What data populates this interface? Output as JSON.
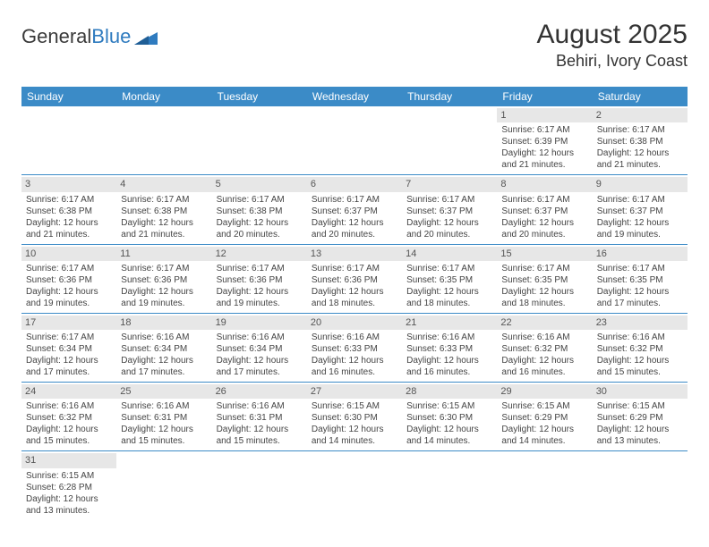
{
  "logo": {
    "part1": "General",
    "part2": "Blue"
  },
  "title": "August 2025",
  "location": "Behiri, Ivory Coast",
  "colors": {
    "header_bg": "#3b8bc7",
    "header_text": "#ffffff",
    "daynum_bg": "#e7e7e7",
    "divider": "#3b8bc7",
    "text": "#444444"
  },
  "day_labels": [
    "Sunday",
    "Monday",
    "Tuesday",
    "Wednesday",
    "Thursday",
    "Friday",
    "Saturday"
  ],
  "weeks": [
    [
      {
        "n": "",
        "sr": "",
        "ss": "",
        "dl": ""
      },
      {
        "n": "",
        "sr": "",
        "ss": "",
        "dl": ""
      },
      {
        "n": "",
        "sr": "",
        "ss": "",
        "dl": ""
      },
      {
        "n": "",
        "sr": "",
        "ss": "",
        "dl": ""
      },
      {
        "n": "",
        "sr": "",
        "ss": "",
        "dl": ""
      },
      {
        "n": "1",
        "sr": "Sunrise: 6:17 AM",
        "ss": "Sunset: 6:39 PM",
        "dl": "Daylight: 12 hours and 21 minutes."
      },
      {
        "n": "2",
        "sr": "Sunrise: 6:17 AM",
        "ss": "Sunset: 6:38 PM",
        "dl": "Daylight: 12 hours and 21 minutes."
      }
    ],
    [
      {
        "n": "3",
        "sr": "Sunrise: 6:17 AM",
        "ss": "Sunset: 6:38 PM",
        "dl": "Daylight: 12 hours and 21 minutes."
      },
      {
        "n": "4",
        "sr": "Sunrise: 6:17 AM",
        "ss": "Sunset: 6:38 PM",
        "dl": "Daylight: 12 hours and 21 minutes."
      },
      {
        "n": "5",
        "sr": "Sunrise: 6:17 AM",
        "ss": "Sunset: 6:38 PM",
        "dl": "Daylight: 12 hours and 20 minutes."
      },
      {
        "n": "6",
        "sr": "Sunrise: 6:17 AM",
        "ss": "Sunset: 6:37 PM",
        "dl": "Daylight: 12 hours and 20 minutes."
      },
      {
        "n": "7",
        "sr": "Sunrise: 6:17 AM",
        "ss": "Sunset: 6:37 PM",
        "dl": "Daylight: 12 hours and 20 minutes."
      },
      {
        "n": "8",
        "sr": "Sunrise: 6:17 AM",
        "ss": "Sunset: 6:37 PM",
        "dl": "Daylight: 12 hours and 20 minutes."
      },
      {
        "n": "9",
        "sr": "Sunrise: 6:17 AM",
        "ss": "Sunset: 6:37 PM",
        "dl": "Daylight: 12 hours and 19 minutes."
      }
    ],
    [
      {
        "n": "10",
        "sr": "Sunrise: 6:17 AM",
        "ss": "Sunset: 6:36 PM",
        "dl": "Daylight: 12 hours and 19 minutes."
      },
      {
        "n": "11",
        "sr": "Sunrise: 6:17 AM",
        "ss": "Sunset: 6:36 PM",
        "dl": "Daylight: 12 hours and 19 minutes."
      },
      {
        "n": "12",
        "sr": "Sunrise: 6:17 AM",
        "ss": "Sunset: 6:36 PM",
        "dl": "Daylight: 12 hours and 19 minutes."
      },
      {
        "n": "13",
        "sr": "Sunrise: 6:17 AM",
        "ss": "Sunset: 6:36 PM",
        "dl": "Daylight: 12 hours and 18 minutes."
      },
      {
        "n": "14",
        "sr": "Sunrise: 6:17 AM",
        "ss": "Sunset: 6:35 PM",
        "dl": "Daylight: 12 hours and 18 minutes."
      },
      {
        "n": "15",
        "sr": "Sunrise: 6:17 AM",
        "ss": "Sunset: 6:35 PM",
        "dl": "Daylight: 12 hours and 18 minutes."
      },
      {
        "n": "16",
        "sr": "Sunrise: 6:17 AM",
        "ss": "Sunset: 6:35 PM",
        "dl": "Daylight: 12 hours and 17 minutes."
      }
    ],
    [
      {
        "n": "17",
        "sr": "Sunrise: 6:17 AM",
        "ss": "Sunset: 6:34 PM",
        "dl": "Daylight: 12 hours and 17 minutes."
      },
      {
        "n": "18",
        "sr": "Sunrise: 6:16 AM",
        "ss": "Sunset: 6:34 PM",
        "dl": "Daylight: 12 hours and 17 minutes."
      },
      {
        "n": "19",
        "sr": "Sunrise: 6:16 AM",
        "ss": "Sunset: 6:34 PM",
        "dl": "Daylight: 12 hours and 17 minutes."
      },
      {
        "n": "20",
        "sr": "Sunrise: 6:16 AM",
        "ss": "Sunset: 6:33 PM",
        "dl": "Daylight: 12 hours and 16 minutes."
      },
      {
        "n": "21",
        "sr": "Sunrise: 6:16 AM",
        "ss": "Sunset: 6:33 PM",
        "dl": "Daylight: 12 hours and 16 minutes."
      },
      {
        "n": "22",
        "sr": "Sunrise: 6:16 AM",
        "ss": "Sunset: 6:32 PM",
        "dl": "Daylight: 12 hours and 16 minutes."
      },
      {
        "n": "23",
        "sr": "Sunrise: 6:16 AM",
        "ss": "Sunset: 6:32 PM",
        "dl": "Daylight: 12 hours and 15 minutes."
      }
    ],
    [
      {
        "n": "24",
        "sr": "Sunrise: 6:16 AM",
        "ss": "Sunset: 6:32 PM",
        "dl": "Daylight: 12 hours and 15 minutes."
      },
      {
        "n": "25",
        "sr": "Sunrise: 6:16 AM",
        "ss": "Sunset: 6:31 PM",
        "dl": "Daylight: 12 hours and 15 minutes."
      },
      {
        "n": "26",
        "sr": "Sunrise: 6:16 AM",
        "ss": "Sunset: 6:31 PM",
        "dl": "Daylight: 12 hours and 15 minutes."
      },
      {
        "n": "27",
        "sr": "Sunrise: 6:15 AM",
        "ss": "Sunset: 6:30 PM",
        "dl": "Daylight: 12 hours and 14 minutes."
      },
      {
        "n": "28",
        "sr": "Sunrise: 6:15 AM",
        "ss": "Sunset: 6:30 PM",
        "dl": "Daylight: 12 hours and 14 minutes."
      },
      {
        "n": "29",
        "sr": "Sunrise: 6:15 AM",
        "ss": "Sunset: 6:29 PM",
        "dl": "Daylight: 12 hours and 14 minutes."
      },
      {
        "n": "30",
        "sr": "Sunrise: 6:15 AM",
        "ss": "Sunset: 6:29 PM",
        "dl": "Daylight: 12 hours and 13 minutes."
      }
    ],
    [
      {
        "n": "31",
        "sr": "Sunrise: 6:15 AM",
        "ss": "Sunset: 6:28 PM",
        "dl": "Daylight: 12 hours and 13 minutes."
      },
      {
        "n": "",
        "sr": "",
        "ss": "",
        "dl": ""
      },
      {
        "n": "",
        "sr": "",
        "ss": "",
        "dl": ""
      },
      {
        "n": "",
        "sr": "",
        "ss": "",
        "dl": ""
      },
      {
        "n": "",
        "sr": "",
        "ss": "",
        "dl": ""
      },
      {
        "n": "",
        "sr": "",
        "ss": "",
        "dl": ""
      },
      {
        "n": "",
        "sr": "",
        "ss": "",
        "dl": ""
      }
    ]
  ]
}
